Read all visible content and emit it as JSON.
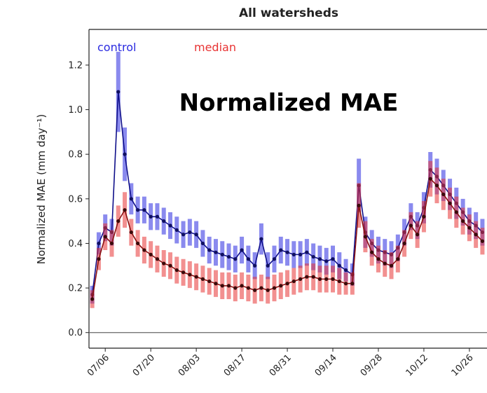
{
  "chart_data": {
    "type": "line",
    "title": "All watersheds",
    "annotation": "Normalized MAE",
    "y_label": "Normalized MAE (mm day⁻¹)",
    "categories": [
      null,
      null,
      "07/06",
      null,
      null,
      null,
      null,
      null,
      null,
      "07/20",
      null,
      null,
      null,
      null,
      null,
      null,
      "08/03",
      null,
      null,
      null,
      null,
      null,
      null,
      "08/17",
      null,
      null,
      null,
      null,
      null,
      null,
      "08/31",
      null,
      null,
      null,
      null,
      null,
      null,
      "09/14",
      null,
      null,
      null,
      null,
      null,
      null,
      "09/28",
      null,
      null,
      null,
      null,
      null,
      null,
      "10/12",
      null,
      null,
      null,
      null,
      null,
      null,
      "10/26",
      null,
      null
    ],
    "series": [
      {
        "name": "control",
        "color": "#2a2ae0",
        "values": [
          0.17,
          0.4,
          0.47,
          0.45,
          1.08,
          0.8,
          0.6,
          0.55,
          0.55,
          0.52,
          0.52,
          0.5,
          0.48,
          0.46,
          0.44,
          0.45,
          0.44,
          0.4,
          0.37,
          0.36,
          0.35,
          0.34,
          0.33,
          0.37,
          0.33,
          0.3,
          0.42,
          0.3,
          0.33,
          0.37,
          0.36,
          0.35,
          0.35,
          0.36,
          0.34,
          0.33,
          0.32,
          0.33,
          0.3,
          0.28,
          0.26,
          0.66,
          0.45,
          0.4,
          0.37,
          0.36,
          0.35,
          0.38,
          0.45,
          0.52,
          0.48,
          0.56,
          0.73,
          0.7,
          0.66,
          0.62,
          0.58,
          0.54,
          0.5,
          0.48,
          0.45
        ],
        "errors": [
          0.04,
          0.05,
          0.06,
          0.06,
          0.18,
          0.12,
          0.07,
          0.06,
          0.06,
          0.06,
          0.06,
          0.06,
          0.06,
          0.06,
          0.06,
          0.06,
          0.06,
          0.06,
          0.06,
          0.06,
          0.06,
          0.06,
          0.06,
          0.06,
          0.06,
          0.06,
          0.07,
          0.06,
          0.06,
          0.06,
          0.06,
          0.06,
          0.06,
          0.06,
          0.06,
          0.06,
          0.06,
          0.06,
          0.06,
          0.05,
          0.05,
          0.12,
          0.07,
          0.06,
          0.06,
          0.06,
          0.06,
          0.06,
          0.06,
          0.06,
          0.06,
          0.07,
          0.08,
          0.08,
          0.07,
          0.07,
          0.07,
          0.06,
          0.06,
          0.06,
          0.06
        ]
      },
      {
        "name": "median",
        "color": "#e83434",
        "values": [
          0.15,
          0.33,
          0.43,
          0.4,
          0.5,
          0.55,
          0.45,
          0.4,
          0.37,
          0.35,
          0.33,
          0.31,
          0.3,
          0.28,
          0.27,
          0.26,
          0.25,
          0.24,
          0.23,
          0.22,
          0.21,
          0.21,
          0.2,
          0.21,
          0.2,
          0.19,
          0.2,
          0.19,
          0.2,
          0.21,
          0.22,
          0.23,
          0.24,
          0.25,
          0.25,
          0.24,
          0.24,
          0.24,
          0.23,
          0.22,
          0.22,
          0.57,
          0.43,
          0.36,
          0.33,
          0.31,
          0.3,
          0.33,
          0.4,
          0.48,
          0.44,
          0.52,
          0.69,
          0.66,
          0.62,
          0.58,
          0.54,
          0.5,
          0.47,
          0.44,
          0.41
        ],
        "errors": [
          0.04,
          0.05,
          0.06,
          0.06,
          0.07,
          0.08,
          0.06,
          0.06,
          0.06,
          0.06,
          0.06,
          0.06,
          0.06,
          0.06,
          0.06,
          0.06,
          0.06,
          0.06,
          0.06,
          0.06,
          0.06,
          0.06,
          0.06,
          0.06,
          0.06,
          0.06,
          0.06,
          0.06,
          0.06,
          0.06,
          0.06,
          0.06,
          0.06,
          0.06,
          0.06,
          0.06,
          0.06,
          0.06,
          0.06,
          0.05,
          0.05,
          0.1,
          0.07,
          0.06,
          0.06,
          0.06,
          0.06,
          0.06,
          0.06,
          0.06,
          0.06,
          0.07,
          0.08,
          0.08,
          0.07,
          0.07,
          0.07,
          0.06,
          0.06,
          0.06,
          0.06
        ]
      }
    ],
    "ylim": [
      -0.07,
      1.36
    ],
    "yticks": [
      {
        "value": 0,
        "label": "0.0"
      },
      0.2,
      0.4,
      0.6,
      0.8,
      {
        "value": 1,
        "label": "1.0"
      },
      1.2
    ],
    "hline": 0,
    "legend": "top-left"
  }
}
